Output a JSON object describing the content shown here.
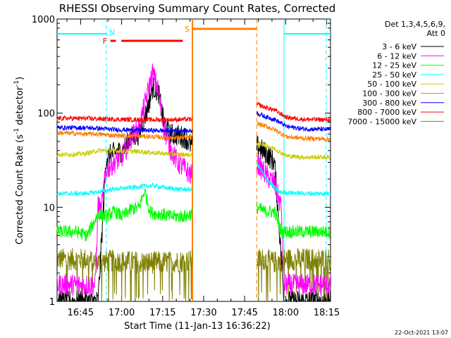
{
  "chart_data": {
    "type": "line",
    "title": "RHESSI Observing Summary Count Rates, Corrected",
    "xlabel": "Start Time (11-Jan-13 16:36:22)",
    "ylabel": "Corrected Count Rate (s",
    "ylabel_sup": "-1",
    "ylabel_mid": " detector",
    "ylabel_sup2": "-1",
    "ylabel_end": ")",
    "x_unit": "minutes since 16:36:22",
    "xlim": [
      0,
      100
    ],
    "ylim": [
      1,
      1000
    ],
    "yscale": "log",
    "x_ticks": [
      {
        "x": 8.6,
        "label": "16:45"
      },
      {
        "x": 23.6,
        "label": "17:00"
      },
      {
        "x": 38.6,
        "label": "17:15"
      },
      {
        "x": 53.6,
        "label": "17:30"
      },
      {
        "x": 68.6,
        "label": "17:45"
      },
      {
        "x": 83.6,
        "label": "18:00"
      },
      {
        "x": 98.6,
        "label": "18:15"
      }
    ],
    "y_ticks": [
      {
        "y": 1,
        "label": "1"
      },
      {
        "y": 10,
        "label": "10"
      },
      {
        "y": 100,
        "label": "100"
      },
      {
        "y": 1000,
        "label": "1000"
      }
    ],
    "legend_header": [
      "Det 1,3,4,5,6,9,",
      "Att 0"
    ],
    "legend_placement": "right",
    "footer_date": "22-Oct-2021 13:07",
    "flags": {
      "N_label": "N",
      "F_label": "F",
      "S_label": "S"
    },
    "series": [
      {
        "name": "3 - 6 keV",
        "color": "#000000",
        "x": [
          0,
          15,
          18,
          21,
          24,
          27,
          30,
          33,
          35,
          37,
          39,
          41,
          44,
          47,
          49,
          73,
          75,
          77,
          79.5,
          82,
          83
        ],
        "y": [
          1,
          1,
          34,
          38,
          40,
          55,
          60,
          110,
          190,
          170,
          80,
          60,
          58,
          55,
          45,
          45,
          40,
          36,
          30,
          3,
          1
        ]
      },
      {
        "name": "6 - 12 keV",
        "color": "#ff00ff",
        "x": [
          0,
          14,
          15,
          16,
          18,
          21,
          24,
          27,
          30,
          33,
          35,
          37,
          39,
          41,
          44,
          47,
          49,
          73,
          75,
          77,
          79.5,
          82,
          83
        ],
        "y": [
          1.5,
          1.5,
          11,
          9,
          25,
          30,
          35,
          55,
          70,
          160,
          270,
          170,
          70,
          45,
          30,
          25,
          22,
          30,
          25,
          21,
          18,
          10,
          1.5
        ]
      },
      {
        "name": "12 - 25 keV",
        "color": "#00ff00",
        "x": [
          0,
          7,
          11,
          15,
          18,
          21,
          24,
          27,
          30,
          32,
          34,
          36,
          38,
          41,
          44,
          47,
          49,
          73,
          76,
          79.5,
          82,
          100
        ],
        "y": [
          5.5,
          5.5,
          5,
          8.5,
          8,
          9,
          8,
          9.5,
          10,
          15,
          9,
          8.5,
          8.5,
          8,
          8,
          8,
          8.5,
          10,
          9,
          9,
          5.5,
          5.5
        ]
      },
      {
        "name": "25 - 50 keV",
        "color": "#00ffff",
        "x": [
          0,
          10,
          15,
          20,
          25,
          30,
          35,
          40,
          45,
          49,
          73,
          76,
          79.5,
          81,
          90,
          100
        ],
        "y": [
          14,
          14,
          14.5,
          15.5,
          16,
          16.5,
          17,
          16,
          15.5,
          15.5,
          30,
          21,
          16,
          14.5,
          14,
          14
        ]
      },
      {
        "name": "50 - 100 keV",
        "color": "#cccc00",
        "x": [
          0,
          10,
          15,
          20,
          30,
          40,
          49,
          73,
          76,
          79.5,
          84,
          90,
          100
        ],
        "y": [
          36,
          37,
          40,
          40,
          39,
          37,
          36,
          48,
          46,
          42,
          35,
          34,
          34
        ]
      },
      {
        "name": "100 - 300 keV",
        "color": "#ff8000",
        "x": [
          0,
          10,
          15,
          20,
          30,
          40,
          49,
          73,
          76,
          79.5,
          84,
          90,
          100
        ],
        "y": [
          62,
          60,
          60,
          58,
          57,
          55,
          55,
          78,
          73,
          67,
          56,
          54,
          53
        ]
      },
      {
        "name": "300 - 800 keV",
        "color": "#0000ff",
        "x": [
          0,
          10,
          15,
          20,
          30,
          40,
          49,
          73,
          76,
          79.5,
          84,
          90,
          100
        ],
        "y": [
          70,
          70,
          69,
          67,
          66,
          65,
          65,
          100,
          92,
          86,
          72,
          68,
          67
        ]
      },
      {
        "name": "800 - 7000 keV",
        "color": "#ff0000",
        "x": [
          0,
          10,
          15,
          20,
          30,
          40,
          49,
          73,
          76,
          79.5,
          84,
          90,
          100
        ],
        "y": [
          88,
          88,
          87,
          86,
          85,
          85,
          86,
          125,
          115,
          108,
          90,
          86,
          85
        ]
      },
      {
        "name": "7000 - 15000 keV",
        "color": "#808000",
        "x": [
          0,
          10,
          15,
          20,
          30,
          40,
          49,
          73,
          76,
          79.5,
          83,
          90,
          100
        ],
        "y": [
          2.8,
          2.8,
          2.6,
          2.7,
          2.6,
          2.6,
          2.7,
          2.8,
          2.8,
          2.6,
          2.8,
          2.8,
          2.8
        ]
      }
    ],
    "annotations": {
      "N_intervals": [
        [
          0,
          18
        ],
        [
          83,
          100
        ]
      ],
      "F_intervals": [
        [
          19.5,
          21.5
        ],
        [
          23.5,
          46
        ]
      ],
      "S_intervals": [
        [
          49.5,
          73
        ]
      ],
      "n_color": "#00ffff",
      "f_color": "#ff0000",
      "s_color": "#ff8000"
    }
  }
}
